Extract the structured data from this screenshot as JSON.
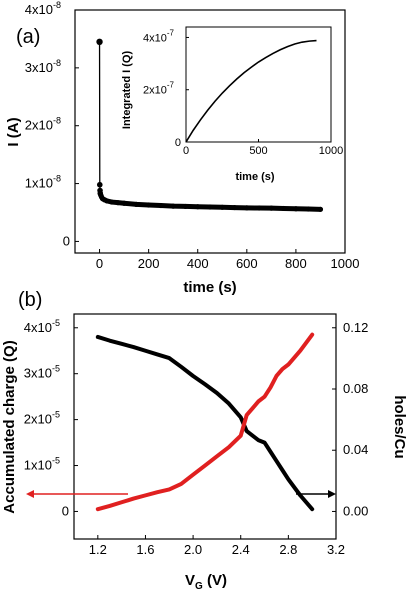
{
  "chart_data": [
    {
      "id": "a-main",
      "panel_label": "(a)",
      "type": "scatter",
      "xlabel": "time (s)",
      "ylabel": "I (A)",
      "xlim": [
        -100,
        1000
      ],
      "ylim": [
        -0.2,
        4
      ],
      "y_tick_labels": [
        "0",
        "1x10",
        "2x10",
        "3x10",
        "4x10"
      ],
      "y_tick_exponent": "-8",
      "x_tick_labels": [
        "0",
        "200",
        "400",
        "600",
        "800",
        "1000"
      ],
      "series": [
        {
          "color": "#000000",
          "x": [
            0,
            1,
            2,
            3,
            5,
            8,
            12,
            20,
            30,
            50,
            75,
            100,
            150,
            200,
            250,
            300,
            350,
            400,
            450,
            500,
            550,
            600,
            650,
            700,
            750,
            800,
            850,
            900
          ],
          "y": [
            3.45,
            0.98,
            0.88,
            0.83,
            0.8,
            0.77,
            0.74,
            0.72,
            0.7,
            0.68,
            0.67,
            0.66,
            0.64,
            0.63,
            0.62,
            0.61,
            0.605,
            0.6,
            0.595,
            0.59,
            0.585,
            0.58,
            0.578,
            0.575,
            0.57,
            0.565,
            0.56,
            0.555
          ]
        }
      ]
    },
    {
      "id": "a-inset",
      "type": "line",
      "xlabel": "time (s)",
      "ylabel": "Integrated I (Q)",
      "xlim": [
        0,
        1000
      ],
      "ylim": [
        0,
        4.4
      ],
      "y_tick_labels": [
        "0",
        "2x10",
        "4x10"
      ],
      "y_tick_exponent": "-7",
      "x_tick_labels": [
        "0",
        "500",
        "1000"
      ],
      "series": [
        {
          "color": "#000000",
          "x": [
            0,
            50,
            100,
            150,
            200,
            250,
            300,
            350,
            400,
            450,
            500,
            550,
            600,
            650,
            700,
            750,
            800,
            850,
            900
          ],
          "y": [
            0,
            0.45,
            0.85,
            1.22,
            1.56,
            1.87,
            2.15,
            2.41,
            2.65,
            2.86,
            3.06,
            3.23,
            3.39,
            3.53,
            3.65,
            3.75,
            3.82,
            3.86,
            3.88
          ]
        }
      ]
    },
    {
      "id": "b",
      "panel_label": "(b)",
      "type": "line",
      "xlabel_main": "V",
      "xlabel_sub": "G",
      "xlabel_unit": " (V)",
      "ylabel": "Accumulated charge (Q)",
      "y2label": "holes/Cu",
      "xlim": [
        1.0,
        3.2
      ],
      "ylim": [
        -0.6,
        4.3
      ],
      "y2lim": [
        -0.018,
        0.129
      ],
      "x_tick_labels": [
        "1.2",
        "1.6",
        "2.0",
        "2.4",
        "2.8",
        "3.2"
      ],
      "y_tick_labels": [
        "0",
        "1x10",
        "2x10",
        "3x10",
        "4x10"
      ],
      "y_tick_exponent": "-5",
      "y2_tick_labels": [
        "0.00",
        "0.04",
        "0.08",
        "0.12"
      ],
      "series": [
        {
          "color": "#000000",
          "axis": "left",
          "x": [
            1.2,
            1.3,
            1.4,
            1.5,
            1.6,
            1.7,
            1.8,
            1.9,
            2.0,
            2.1,
            2.2,
            2.3,
            2.4,
            2.45,
            2.5,
            2.55,
            2.6,
            2.65,
            2.7,
            2.75,
            2.8,
            2.9,
            3.0
          ],
          "y": [
            3.8,
            3.72,
            3.65,
            3.58,
            3.5,
            3.42,
            3.34,
            3.15,
            2.95,
            2.77,
            2.58,
            2.35,
            2.05,
            1.75,
            1.65,
            1.55,
            1.5,
            1.3,
            1.1,
            0.9,
            0.7,
            0.35,
            0.05
          ]
        },
        {
          "color": "#e02020",
          "axis": "left",
          "x": [
            1.2,
            1.3,
            1.4,
            1.5,
            1.6,
            1.7,
            1.8,
            1.9,
            2.0,
            2.1,
            2.2,
            2.3,
            2.4,
            2.45,
            2.5,
            2.55,
            2.6,
            2.65,
            2.7,
            2.75,
            2.8,
            2.9,
            3.0
          ],
          "y": [
            0.05,
            0.12,
            0.2,
            0.28,
            0.35,
            0.42,
            0.48,
            0.6,
            0.8,
            1.0,
            1.2,
            1.4,
            1.65,
            2.1,
            2.25,
            2.4,
            2.5,
            2.7,
            2.95,
            3.1,
            3.2,
            3.5,
            3.85
          ]
        }
      ]
    }
  ]
}
